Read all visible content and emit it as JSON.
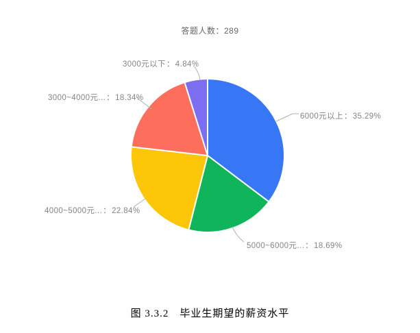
{
  "page": {
    "background_color": "#ffffff"
  },
  "header": {
    "title": "答题人数：289"
  },
  "caption": {
    "text": "图 3.3.2　毕业生期望的薪资水平"
  },
  "chart_data": {
    "type": "pie",
    "title": "答题人数：289",
    "total_respondents": 289,
    "start_angle": "12-o-clock",
    "direction": "clockwise",
    "legend_position": "none",
    "label_separator": "：",
    "label_color": "#848484",
    "leader_line_color": "#b0b0b0",
    "slice_border_color": "#ffffff",
    "slices": [
      {
        "id": "6000-plus",
        "label": "6000元以上",
        "value": 35.29,
        "percent_text": "35.29%",
        "color": "#3777F6"
      },
      {
        "id": "5000-6000",
        "label": "5000~6000元...",
        "value": 18.69,
        "percent_text": "18.69%",
        "color": "#10B45A"
      },
      {
        "id": "4000-5000",
        "label": "4000~5000元...",
        "value": 22.84,
        "percent_text": "22.84%",
        "color": "#FDC609"
      },
      {
        "id": "3000-4000",
        "label": "3000~4000元...",
        "value": 18.34,
        "percent_text": "18.34%",
        "color": "#FE6E5C"
      },
      {
        "id": "below-3000",
        "label": "3000元以下",
        "value": 4.84,
        "percent_text": "4.84%",
        "color": "#7D6EF0"
      }
    ]
  }
}
